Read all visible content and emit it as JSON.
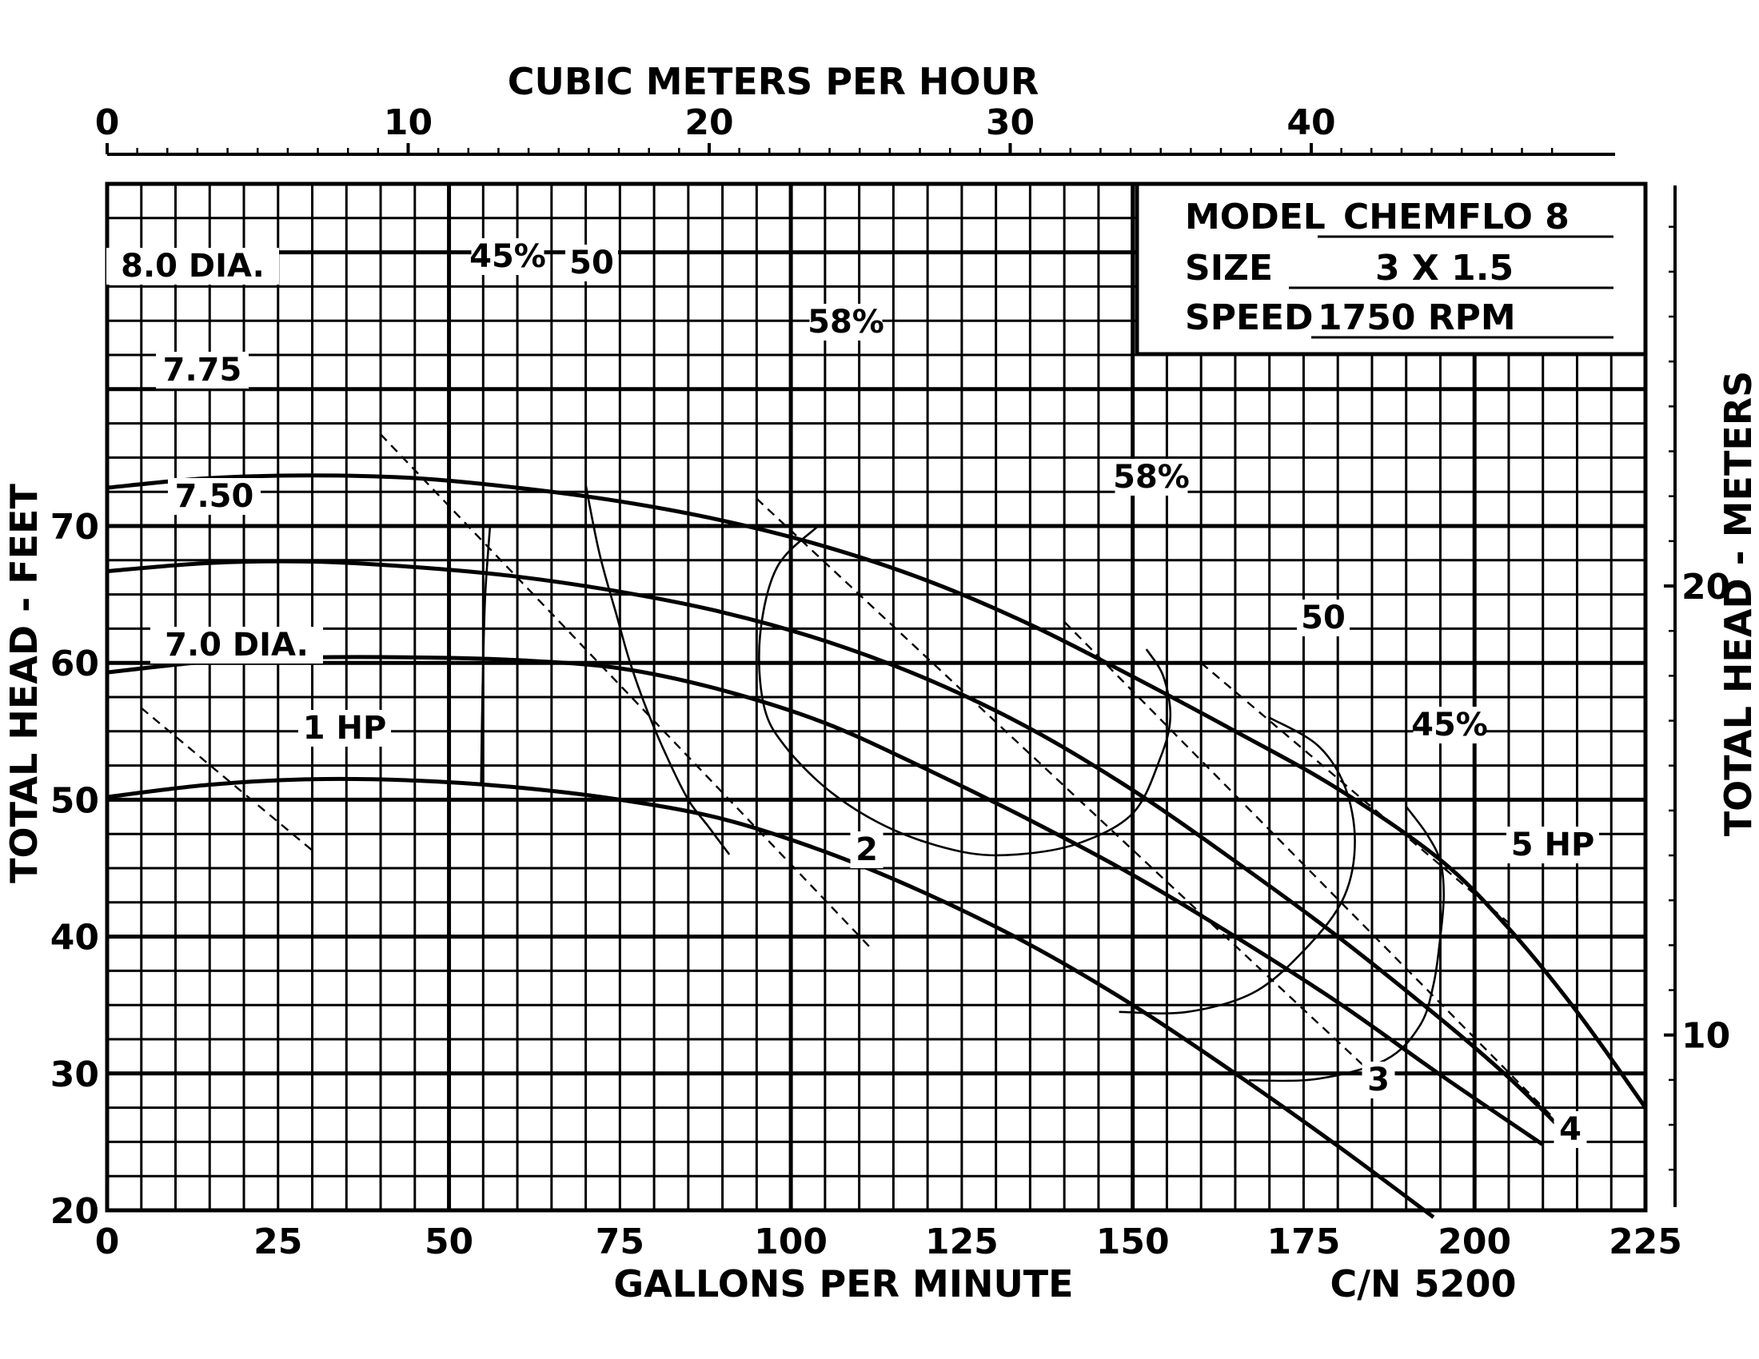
{
  "chart_data": {
    "type": "line",
    "title": "",
    "xlabel": "GALLONS PER MINUTE",
    "ylabel": "TOTAL HEAD - FEET",
    "x2label": "CUBIC METERS PER HOUR",
    "y2label": "TOTAL HEAD - METERS",
    "xlim": [
      0,
      225
    ],
    "ylim": [
      20,
      95
    ],
    "x_ticks": [
      0,
      25,
      50,
      75,
      100,
      125,
      150,
      175,
      200,
      225
    ],
    "y_ticks": [
      20,
      30,
      40,
      50,
      60,
      70
    ],
    "x2_ticks": [
      0,
      10,
      20,
      30,
      40
    ],
    "y2_ticks": [
      10,
      20
    ],
    "grid": true,
    "info_box": {
      "model_label": "MODEL",
      "model_value": "CHEMFLO 8",
      "size_label": "SIZE",
      "size_value": "3 X 1.5",
      "speed_label": "SPEED",
      "speed_value": "1750 RPM"
    },
    "footer": "C/N 5200",
    "series": [
      {
        "name": "8.0 DIA.",
        "x": [
          0,
          15,
          30,
          45,
          60,
          75,
          90,
          105,
          120,
          135,
          150,
          165,
          180,
          195,
          205,
          215,
          225
        ],
        "y": [
          72.8,
          73.5,
          73.7,
          73.5,
          72.8,
          71.8,
          70.4,
          68.5,
          66.0,
          62.8,
          59.0,
          55.0,
          50.8,
          45.6,
          40.6,
          34.5,
          27.5
        ]
      },
      {
        "name": "7.75",
        "x": [
          0,
          15,
          30,
          45,
          60,
          75,
          90,
          105,
          120,
          135,
          150,
          165,
          180,
          195,
          205,
          213
        ],
        "y": [
          66.7,
          67.3,
          67.4,
          67.0,
          66.3,
          65.2,
          63.7,
          61.6,
          58.8,
          55.2,
          50.7,
          45.5,
          40.0,
          34.0,
          29.7,
          25.8
        ]
      },
      {
        "name": "7.50",
        "x": [
          0,
          15,
          30,
          45,
          60,
          75,
          90,
          105,
          120,
          135,
          150,
          165,
          180,
          195,
          210
        ],
        "y": [
          59.3,
          60.1,
          60.4,
          60.4,
          60.2,
          59.6,
          58.0,
          55.6,
          52.2,
          48.5,
          44.5,
          40.0,
          35.2,
          29.9,
          24.8
        ]
      },
      {
        "name": "7.0 DIA.",
        "x": [
          0,
          15,
          30,
          45,
          60,
          75,
          90,
          105,
          120,
          135,
          150,
          165,
          180,
          194
        ],
        "y": [
          50.2,
          51.1,
          51.5,
          51.4,
          50.9,
          50.0,
          48.6,
          46.2,
          43.1,
          39.4,
          35.0,
          30.0,
          24.7,
          19.5
        ]
      }
    ],
    "efficiency_curves": [
      {
        "name": "45%",
        "x": [
          56,
          55.3,
          55,
          54.8,
          54.7
        ],
        "y": [
          70.0,
          65.0,
          60.0,
          55.0,
          51.0
        ]
      },
      {
        "name": "50",
        "x": [
          70,
          72,
          74.5,
          76.5,
          79,
          82,
          85,
          88,
          91
        ],
        "y": [
          73.0,
          68.0,
          63.5,
          60.0,
          56.5,
          53.0,
          50.0,
          48.0,
          46.0
        ]
      },
      {
        "name": "58%",
        "x": [
          104,
          98,
          95.5,
          96,
          99,
          106,
          115,
          125,
          133,
          142,
          150,
          154,
          155.5,
          154.5,
          152
        ],
        "y": [
          70.0,
          67.0,
          62.0,
          57.0,
          54.0,
          50.5,
          47.8,
          46.2,
          46.0,
          46.8,
          49.0,
          53.0,
          56.0,
          59.0,
          61.0
        ]
      },
      {
        "name": "50",
        "x": [
          148,
          158,
          168,
          176,
          181,
          182.5,
          181,
          177,
          170
        ],
        "y": [
          34.5,
          34.5,
          36.0,
          39.5,
          43.0,
          47.0,
          51.0,
          54.0,
          56.0
        ]
      },
      {
        "name": "45%",
        "x": [
          167,
          177,
          187,
          192,
          194,
          195,
          195.5,
          195,
          193,
          190
        ],
        "y": [
          29.5,
          29.6,
          31.0,
          33.5,
          36.5,
          40.0,
          43.0,
          45.5,
          47.5,
          49.5
        ]
      }
    ],
    "hp_lines": [
      {
        "label": "1 HP",
        "x": [
          5,
          30
        ],
        "y": [
          56.7,
          46.3
        ]
      },
      {
        "label": "2",
        "x": [
          40,
          112
        ],
        "y": [
          76.7,
          39.0
        ]
      },
      {
        "label": "3",
        "x": [
          95,
          185
        ],
        "y": [
          72.0,
          30.0
        ]
      },
      {
        "label": "4",
        "x": [
          140,
          215
        ],
        "y": [
          63.0,
          25.0
        ]
      },
      {
        "label": "5 HP",
        "x": [
          160,
          205
        ],
        "y": [
          60.0,
          41.0
        ]
      }
    ],
    "curve_labels": [
      "8.0 DIA.",
      "7.75",
      "7.50",
      "7.0 DIA.",
      "45%",
      "50",
      "58%",
      "58%",
      "50",
      "45%",
      "1 HP",
      "2",
      "3",
      "4",
      "5 HP"
    ]
  }
}
